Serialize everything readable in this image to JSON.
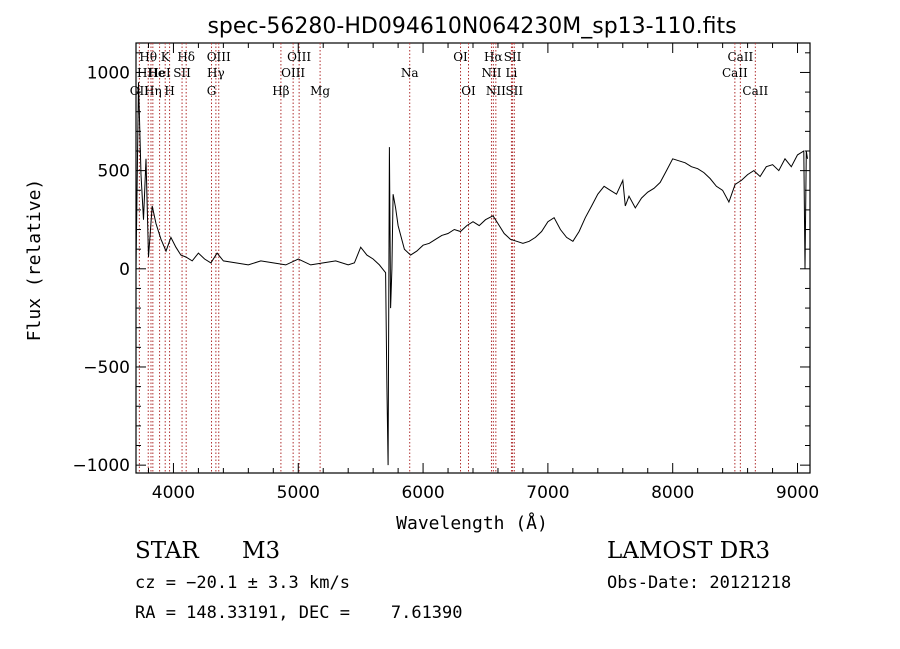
{
  "chart_data": {
    "type": "line",
    "title": "spec-56280-HD094610N064230M_sp13-110.fits",
    "xlabel": "Wavelength (Å)",
    "ylabel": "Flux (relative)",
    "xlim": [
      3700,
      9100
    ],
    "ylim": [
      -1040,
      1150
    ],
    "xticks": [
      4000,
      5000,
      6000,
      7000,
      8000,
      9000
    ],
    "yticks": [
      -1000,
      -500,
      0,
      500,
      1000
    ],
    "xtick_labels": [
      "4000",
      "5000",
      "6000",
      "7000",
      "8000",
      "9000"
    ],
    "ytick_labels": [
      "−1000",
      "−500",
      "0",
      "500",
      "1000"
    ],
    "line_color": "#000000",
    "marker_color": "#b03030",
    "spectrum": {
      "x": [
        3700,
        3720,
        3740,
        3760,
        3780,
        3800,
        3830,
        3860,
        3900,
        3940,
        3980,
        4020,
        4060,
        4100,
        4150,
        4200,
        4250,
        4300,
        4350,
        4400,
        4500,
        4600,
        4700,
        4800,
        4900,
        5000,
        5100,
        5200,
        5300,
        5400,
        5450,
        5500,
        5550,
        5600,
        5650,
        5700,
        5710,
        5720,
        5730,
        5740,
        5750,
        5760,
        5780,
        5800,
        5850,
        5900,
        5950,
        6000,
        6050,
        6100,
        6150,
        6200,
        6250,
        6300,
        6350,
        6400,
        6450,
        6500,
        6560,
        6600,
        6650,
        6700,
        6750,
        6800,
        6850,
        6900,
        6950,
        7000,
        7050,
        7100,
        7150,
        7200,
        7250,
        7300,
        7350,
        7400,
        7450,
        7500,
        7550,
        7600,
        7620,
        7650,
        7700,
        7750,
        7800,
        7850,
        7900,
        7950,
        8000,
        8050,
        8100,
        8150,
        8200,
        8250,
        8300,
        8350,
        8400,
        8450,
        8500,
        8550,
        8600,
        8650,
        8700,
        8750,
        8800,
        8850,
        8900,
        8950,
        9000,
        9050,
        9060,
        9070,
        9080
      ],
      "y": [
        0,
        950,
        480,
        250,
        560,
        60,
        320,
        230,
        150,
        90,
        160,
        110,
        70,
        60,
        40,
        80,
        50,
        30,
        80,
        40,
        30,
        20,
        40,
        30,
        20,
        50,
        20,
        30,
        40,
        20,
        30,
        110,
        70,
        50,
        20,
        -20,
        -600,
        -1000,
        620,
        -200,
        0,
        380,
        310,
        220,
        100,
        70,
        90,
        120,
        130,
        150,
        170,
        180,
        200,
        190,
        220,
        240,
        220,
        250,
        270,
        230,
        180,
        150,
        140,
        130,
        140,
        160,
        190,
        240,
        260,
        200,
        160,
        140,
        190,
        260,
        320,
        380,
        420,
        400,
        380,
        450,
        320,
        370,
        310,
        360,
        390,
        410,
        440,
        500,
        560,
        550,
        540,
        520,
        510,
        490,
        460,
        420,
        400,
        340,
        430,
        450,
        480,
        500,
        470,
        520,
        530,
        500,
        560,
        520,
        580,
        600,
        0,
        600,
        560
      ]
    },
    "line_markers": [
      {
        "label": "OII",
        "x": 3727,
        "row": 3
      },
      {
        "label": "Hθ",
        "x": 3798,
        "row": 1
      },
      {
        "label": "HHe",
        "x": 3820,
        "row": 2
      },
      {
        "label": "Hη",
        "x": 3835,
        "row": 3
      },
      {
        "label": "K",
        "x": 3934,
        "row": 1
      },
      {
        "label": "HeI",
        "x": 3889,
        "row": 2
      },
      {
        "label": "H",
        "x": 3969,
        "row": 3
      },
      {
        "label": "Hδ",
        "x": 4102,
        "row": 1
      },
      {
        "label": "SII",
        "x": 4069,
        "row": 2
      },
      {
        "label": "OIII",
        "x": 4363,
        "row": 1
      },
      {
        "label": "Hγ",
        "x": 4340,
        "row": 2
      },
      {
        "label": "G",
        "x": 4305,
        "row": 3
      },
      {
        "label": "Hβ",
        "x": 4861,
        "row": 3
      },
      {
        "label": "OIII",
        "x": 5007,
        "row": 1
      },
      {
        "label": "OIII",
        "x": 4959,
        "row": 2
      },
      {
        "label": "Mg",
        "x": 5175,
        "row": 3
      },
      {
        "label": "Na",
        "x": 5893,
        "row": 2
      },
      {
        "label": "OI",
        "x": 6300,
        "row": 1
      },
      {
        "label": "OI",
        "x": 6364,
        "row": 3
      },
      {
        "label": "Hα",
        "x": 6563,
        "row": 1
      },
      {
        "label": "NII",
        "x": 6548,
        "row": 2
      },
      {
        "label": "NII",
        "x": 6583,
        "row": 3
      },
      {
        "label": "SII",
        "x": 6717,
        "row": 1
      },
      {
        "label": "Li",
        "x": 6708,
        "row": 2
      },
      {
        "label": "SII",
        "x": 6731,
        "row": 3
      },
      {
        "label": "CaII",
        "x": 8542,
        "row": 1
      },
      {
        "label": "CaII",
        "x": 8498,
        "row": 2
      },
      {
        "label": "CaII",
        "x": 8662,
        "row": 3
      }
    ]
  },
  "info": {
    "object_class": "STAR",
    "subclass": "M3",
    "survey": "LAMOST DR3",
    "cz": "cz = −20.1 ± 3.3 km/s",
    "obs_date": "Obs-Date: 20121218",
    "coords": "RA = 148.33191, DEC =    7.61390"
  }
}
